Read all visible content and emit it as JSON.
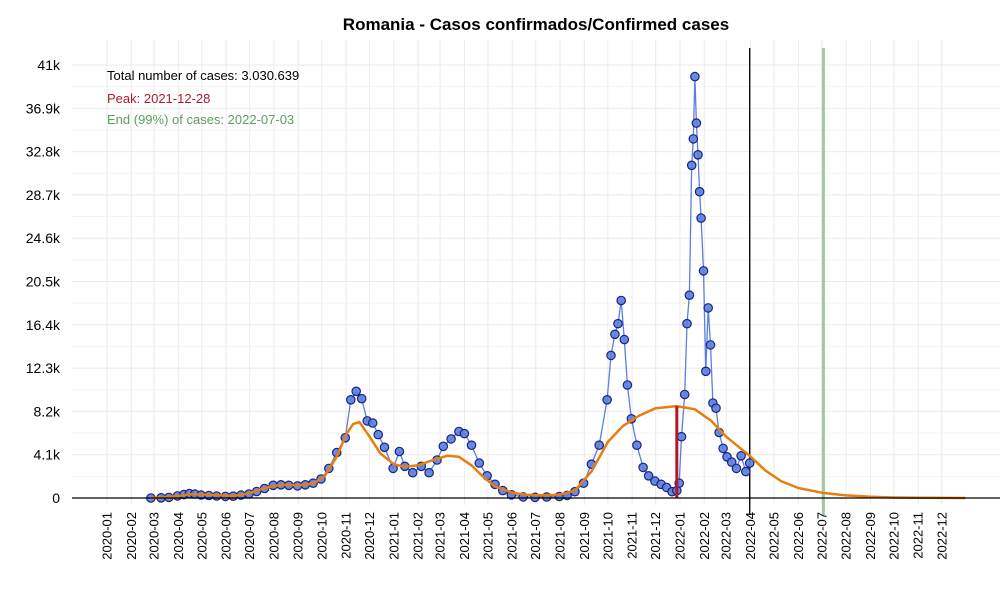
{
  "chart_data": {
    "type": "scatter",
    "title": "Romania - Casos confirmados/Confirmed cases",
    "xlabel": "",
    "ylabel": "",
    "ylim": [
      0,
      41000
    ],
    "y_ticks": [
      {
        "value": 0,
        "label": "0"
      },
      {
        "value": 4100,
        "label": "4.1k"
      },
      {
        "value": 8200,
        "label": "8.2k"
      },
      {
        "value": 12300,
        "label": "12.3k"
      },
      {
        "value": 16400,
        "label": "16.4k"
      },
      {
        "value": 20500,
        "label": "20.5k"
      },
      {
        "value": 24600,
        "label": "24.6k"
      },
      {
        "value": 28700,
        "label": "28.7k"
      },
      {
        "value": 32800,
        "label": "32.8k"
      },
      {
        "value": 36900,
        "label": "36.9k"
      },
      {
        "value": 41000,
        "label": "41k"
      }
    ],
    "x_ticks": [
      "2020-01",
      "2020-02",
      "2020-03",
      "2020-04",
      "2020-05",
      "2020-06",
      "2020-07",
      "2020-08",
      "2020-09",
      "2020-10",
      "2020-11",
      "2020-12",
      "2021-01",
      "2021-02",
      "2021-03",
      "2021-04",
      "2021-05",
      "2021-06",
      "2021-07",
      "2021-08",
      "2021-09",
      "2021-10",
      "2021-11",
      "2021-12",
      "2022-01",
      "2022-02",
      "2022-03",
      "2022-04",
      "2022-05",
      "2022-06",
      "2022-07",
      "2022-08",
      "2022-09",
      "2022-10",
      "2022-11",
      "2022-12"
    ],
    "grid": true,
    "annotations": [
      {
        "text": "Total number of cases: 3.030.639",
        "color": "#000000"
      },
      {
        "text": "Peak: 2021-12-28",
        "color": "#b2182b"
      },
      {
        "text": "End (99%) of cases: 2022-07-03",
        "color": "#5aa05a"
      }
    ],
    "vertical_lines": [
      {
        "date": "2022-03-31",
        "color": "#000000"
      },
      {
        "date": "2022-07-03",
        "color": "#9ccc9c"
      }
    ],
    "peak_line": {
      "date": "2021-12-28",
      "value": 8700,
      "color": "#b2182b"
    },
    "series": [
      {
        "type": "scatter",
        "color": "#5b7fe0",
        "points": [
          [
            "2020-02-26",
            0
          ],
          [
            "2020-03-10",
            15
          ],
          [
            "2020-03-20",
            60
          ],
          [
            "2020-03-31",
            200
          ],
          [
            "2020-04-08",
            320
          ],
          [
            "2020-04-15",
            420
          ],
          [
            "2020-04-22",
            370
          ],
          [
            "2020-04-30",
            280
          ],
          [
            "2020-05-10",
            240
          ],
          [
            "2020-05-20",
            190
          ],
          [
            "2020-05-31",
            150
          ],
          [
            "2020-06-10",
            170
          ],
          [
            "2020-06-20",
            270
          ],
          [
            "2020-06-30",
            380
          ],
          [
            "2020-07-10",
            620
          ],
          [
            "2020-07-20",
            900
          ],
          [
            "2020-07-31",
            1200
          ],
          [
            "2020-08-10",
            1250
          ],
          [
            "2020-08-20",
            1200
          ],
          [
            "2020-08-31",
            1150
          ],
          [
            "2020-09-10",
            1250
          ],
          [
            "2020-09-20",
            1400
          ],
          [
            "2020-09-30",
            1800
          ],
          [
            "2020-10-10",
            2800
          ],
          [
            "2020-10-20",
            4300
          ],
          [
            "2020-10-31",
            5700
          ],
          [
            "2020-11-07",
            9300
          ],
          [
            "2020-11-14",
            10100
          ],
          [
            "2020-11-21",
            9400
          ],
          [
            "2020-11-28",
            7300
          ],
          [
            "2020-12-05",
            7100
          ],
          [
            "2020-12-12",
            6000
          ],
          [
            "2020-12-20",
            4800
          ],
          [
            "2020-12-31",
            2800
          ],
          [
            "2021-01-08",
            4400
          ],
          [
            "2021-01-15",
            3000
          ],
          [
            "2021-01-25",
            2400
          ],
          [
            "2021-02-05",
            3000
          ],
          [
            "2021-02-15",
            2400
          ],
          [
            "2021-02-25",
            3600
          ],
          [
            "2021-03-05",
            4900
          ],
          [
            "2021-03-15",
            5600
          ],
          [
            "2021-03-25",
            6300
          ],
          [
            "2021-04-01",
            6100
          ],
          [
            "2021-04-10",
            5000
          ],
          [
            "2021-04-20",
            3300
          ],
          [
            "2021-04-30",
            2100
          ],
          [
            "2021-05-10",
            1300
          ],
          [
            "2021-05-20",
            700
          ],
          [
            "2021-05-31",
            300
          ],
          [
            "2021-06-15",
            100
          ],
          [
            "2021-06-30",
            70
          ],
          [
            "2021-07-15",
            90
          ],
          [
            "2021-07-31",
            140
          ],
          [
            "2021-08-10",
            250
          ],
          [
            "2021-08-20",
            600
          ],
          [
            "2021-08-31",
            1400
          ],
          [
            "2021-09-10",
            3200
          ],
          [
            "2021-09-20",
            5000
          ],
          [
            "2021-09-30",
            9300
          ],
          [
            "2021-10-05",
            13500
          ],
          [
            "2021-10-10",
            15500
          ],
          [
            "2021-10-14",
            16500
          ],
          [
            "2021-10-18",
            18700
          ],
          [
            "2021-10-22",
            15000
          ],
          [
            "2021-10-26",
            10700
          ],
          [
            "2021-10-31",
            7500
          ],
          [
            "2021-11-07",
            5000
          ],
          [
            "2021-11-15",
            2900
          ],
          [
            "2021-11-22",
            2100
          ],
          [
            "2021-11-30",
            1600
          ],
          [
            "2021-12-08",
            1300
          ],
          [
            "2021-12-15",
            1000
          ],
          [
            "2021-12-22",
            600
          ],
          [
            "2021-12-28",
            700
          ],
          [
            "2021-12-31",
            1400
          ],
          [
            "2022-01-03",
            5800
          ],
          [
            "2022-01-07",
            9800
          ],
          [
            "2022-01-10",
            16500
          ],
          [
            "2022-01-13",
            19200
          ],
          [
            "2022-01-16",
            31500
          ],
          [
            "2022-01-18",
            34000
          ],
          [
            "2022-01-20",
            39900
          ],
          [
            "2022-01-22",
            35500
          ],
          [
            "2022-01-24",
            32500
          ],
          [
            "2022-01-26",
            29000
          ],
          [
            "2022-01-28",
            26500
          ],
          [
            "2022-01-31",
            21500
          ],
          [
            "2022-02-03",
            12000
          ],
          [
            "2022-02-06",
            18000
          ],
          [
            "2022-02-09",
            14500
          ],
          [
            "2022-02-12",
            9000
          ],
          [
            "2022-02-16",
            8500
          ],
          [
            "2022-02-20",
            6200
          ],
          [
            "2022-02-25",
            4700
          ],
          [
            "2022-03-02",
            3900
          ],
          [
            "2022-03-08",
            3400
          ],
          [
            "2022-03-14",
            2800
          ],
          [
            "2022-03-20",
            4000
          ],
          [
            "2022-03-26",
            2500
          ],
          [
            "2022-03-31",
            3300
          ]
        ]
      },
      {
        "type": "line",
        "color": "#e67e10",
        "points": [
          [
            "2020-02-26",
            0
          ],
          [
            "2020-03-31",
            180
          ],
          [
            "2020-04-15",
            350
          ],
          [
            "2020-05-10",
            300
          ],
          [
            "2020-06-10",
            200
          ],
          [
            "2020-07-01",
            450
          ],
          [
            "2020-07-20",
            950
          ],
          [
            "2020-08-10",
            1250
          ],
          [
            "2020-09-01",
            1200
          ],
          [
            "2020-09-20",
            1350
          ],
          [
            "2020-10-05",
            2100
          ],
          [
            "2020-10-20",
            3900
          ],
          [
            "2020-11-01",
            6000
          ],
          [
            "2020-11-10",
            7000
          ],
          [
            "2020-11-18",
            7200
          ],
          [
            "2020-12-01",
            5800
          ],
          [
            "2020-12-15",
            4200
          ],
          [
            "2021-01-01",
            3200
          ],
          [
            "2021-01-15",
            2950
          ],
          [
            "2021-02-01",
            3100
          ],
          [
            "2021-02-20",
            3600
          ],
          [
            "2021-03-10",
            4000
          ],
          [
            "2021-03-25",
            3900
          ],
          [
            "2021-04-10",
            3100
          ],
          [
            "2021-04-25",
            2000
          ],
          [
            "2021-05-10",
            1100
          ],
          [
            "2021-06-01",
            500
          ],
          [
            "2021-06-20",
            300
          ],
          [
            "2021-07-10",
            250
          ],
          [
            "2021-07-31",
            300
          ],
          [
            "2021-08-20",
            700
          ],
          [
            "2021-09-10",
            2500
          ],
          [
            "2021-10-01",
            5300
          ],
          [
            "2021-10-20",
            6800
          ],
          [
            "2021-11-10",
            7800
          ],
          [
            "2021-12-01",
            8500
          ],
          [
            "2021-12-28",
            8700
          ],
          [
            "2022-01-20",
            8400
          ],
          [
            "2022-02-10",
            7300
          ],
          [
            "2022-03-01",
            5800
          ],
          [
            "2022-03-31",
            4000
          ],
          [
            "2022-04-20",
            2600
          ],
          [
            "2022-05-10",
            1600
          ],
          [
            "2022-06-01",
            950
          ],
          [
            "2022-07-01",
            500
          ],
          [
            "2022-08-01",
            250
          ],
          [
            "2022-09-01",
            120
          ],
          [
            "2022-10-01",
            50
          ],
          [
            "2022-11-01",
            20
          ],
          [
            "2022-12-01",
            8
          ],
          [
            "2022-12-31",
            0
          ]
        ]
      }
    ]
  }
}
